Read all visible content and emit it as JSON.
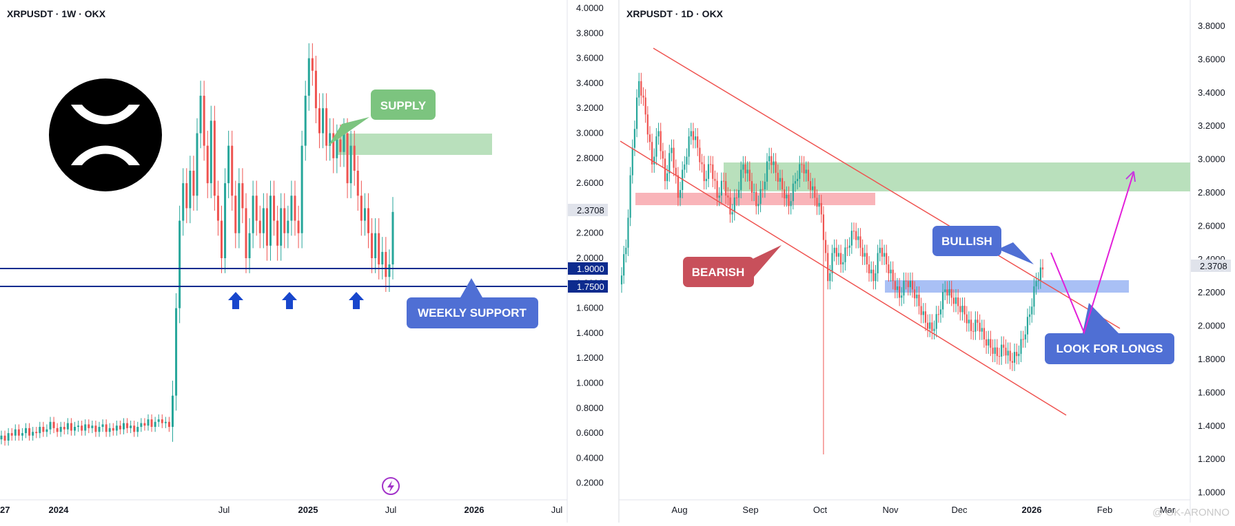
{
  "watermark": "@ GK-ARONNO",
  "chart_data": [
    {
      "type": "candlestick",
      "title": "XRPUSDT · 1W · OKX",
      "x_ticks": [
        "2024",
        "Jul",
        "2025",
        "Jul",
        "2026",
        "Jul",
        "2027"
      ],
      "y_ticks": [
        "4.0000",
        "3.8000",
        "3.6000",
        "3.4000",
        "3.2000",
        "3.0000",
        "2.8000",
        "2.6000",
        "2.4000",
        "2.2000",
        "2.0000",
        "1.8000",
        "1.6000",
        "1.4000",
        "1.2000",
        "1.0000",
        "0.8000",
        "0.6000",
        "0.4000",
        "0.2000"
      ],
      "ylim": [
        0,
        4.0
      ],
      "current_price": "2.3708",
      "levels": [
        {
          "label": "1.9000",
          "value": 1.9
        },
        {
          "label": "1.7500",
          "value": 1.75
        }
      ],
      "supply_zone": [
        2.83,
        2.99
      ],
      "annotations": {
        "supply": "SUPPLY",
        "support": "WEEKLY SUPPORT"
      },
      "support_arrows_at": [
        "2025",
        "2025-04",
        "2025-10"
      ],
      "trend": [
        {
          "period": "2024",
          "open": 0.6,
          "close": 0.52
        },
        {
          "period": "2024-Q4 breakout",
          "open": 0.55,
          "close": 2.6
        },
        {
          "period": "2025-01 high",
          "value": 3.4
        },
        {
          "period": "2025-07 high",
          "value": 3.66
        },
        {
          "period": "2025-10 wick low",
          "value": 1.25
        },
        {
          "period": "2026 latest",
          "value": 2.3708
        }
      ]
    },
    {
      "type": "candlestick",
      "title": "XRPUSDT · 1D · OKX",
      "x_ticks": [
        "Aug",
        "Sep",
        "Oct",
        "Nov",
        "Dec",
        "2026",
        "Feb",
        "Mar"
      ],
      "y_ticks": [
        "3.8000",
        "3.6000",
        "3.4000",
        "3.2000",
        "3.0000",
        "2.8000",
        "2.6000",
        "2.4000",
        "2.2000",
        "2.0000",
        "1.8000",
        "1.6000",
        "1.4000",
        "1.2000",
        "1.0000"
      ],
      "ylim": [
        1.0,
        3.9
      ],
      "current_price": "2.3708",
      "supply_zone": [
        2.82,
        3.0
      ],
      "resistance_zone": [
        2.71,
        2.79
      ],
      "support_zone": [
        2.21,
        2.29
      ],
      "annotations": {
        "bearish": "BEARISH",
        "bullish": "BULLISH",
        "longs": "LOOK FOR LONGS"
      },
      "trend": [
        {
          "period": "Jul high",
          "value": 3.66
        },
        {
          "period": "Oct 10 wick low",
          "value": 1.23
        },
        {
          "period": "Dec low",
          "value": 1.77
        },
        {
          "period": "2026 latest",
          "value": 2.3708
        }
      ]
    }
  ],
  "colors": {
    "up": "#26a69a",
    "down": "#ef5350",
    "support_line": "#0d2b8e",
    "supply_box": "#b9e0bc",
    "supply_label": "#7cc47f",
    "resistance_box": "#f9b4b9",
    "support_box": "#a9c0f5",
    "label_blue": "#4f6fd4",
    "label_red": "#c8505b",
    "arrow_magenta": "#e21fd9",
    "arrow_purple": "#c040e0"
  },
  "icons": {
    "logo": "xrp-logo-icon",
    "arrow": "up-arrow-icon",
    "bolt": "lightning-icon"
  }
}
